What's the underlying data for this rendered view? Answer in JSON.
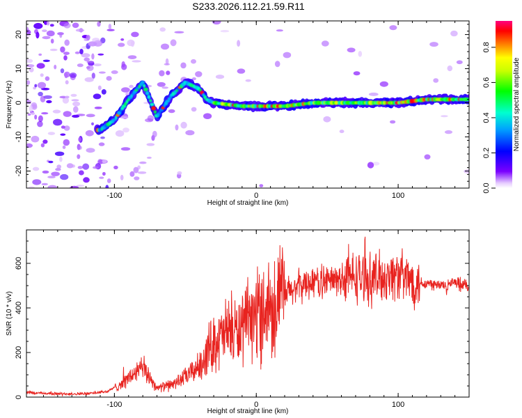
{
  "title": "S233.2026.112.21.59.R11",
  "chart_data": [
    {
      "type": "heatmap",
      "title": "S233.2026.112.21.59.R11",
      "xlabel": "Height of straight line (km)",
      "ylabel": "Frequency (Hz)",
      "xlim": [
        -162,
        150
      ],
      "ylim": [
        -25,
        24
      ],
      "xticks": [
        -100,
        0,
        100
      ],
      "yticks": [
        -20,
        -10,
        0,
        10,
        20
      ],
      "colorbar": {
        "label": "Normalized spectral amplitude",
        "range": [
          0,
          0.95
        ],
        "ticks": [
          0.0,
          0.2,
          0.4,
          0.6,
          0.8
        ]
      },
      "ridge": {
        "x": [
          -110,
          -100,
          -90,
          -80,
          -70,
          -60,
          -50,
          -40,
          -35,
          -30,
          -20,
          -10,
          0,
          20,
          40,
          60,
          80,
          100,
          120,
          150
        ],
        "y": [
          -8,
          -5,
          1,
          6,
          -4,
          2,
          6,
          4,
          1,
          0,
          -0.5,
          -1,
          -1,
          -1,
          0,
          0,
          0,
          0,
          1,
          1
        ]
      }
    },
    {
      "type": "line",
      "xlabel": "Height of straight line (km)",
      "ylabel": "SNR (10 * v/v)",
      "xlim": [
        -162,
        150
      ],
      "ylim": [
        0,
        750
      ],
      "xticks": [
        -100,
        0,
        100
      ],
      "yticks": [
        0,
        200,
        400,
        600
      ],
      "color": "#e8231f",
      "envelope": {
        "x": [
          -162,
          -140,
          -120,
          -105,
          -95,
          -85,
          -80,
          -75,
          -70,
          -60,
          -50,
          -40,
          -35,
          -30,
          -25,
          -20,
          -15,
          -10,
          -5,
          0,
          10,
          20,
          30,
          40,
          50,
          60,
          70,
          80,
          90,
          100,
          110,
          120,
          130,
          140,
          150
        ],
        "y": [
          20,
          15,
          15,
          25,
          60,
          110,
          130,
          90,
          40,
          55,
          90,
          140,
          200,
          250,
          260,
          300,
          290,
          300,
          340,
          380,
          420,
          460,
          500,
          520,
          520,
          530,
          540,
          530,
          540,
          550,
          520,
          510,
          500,
          510,
          500
        ]
      }
    }
  ]
}
